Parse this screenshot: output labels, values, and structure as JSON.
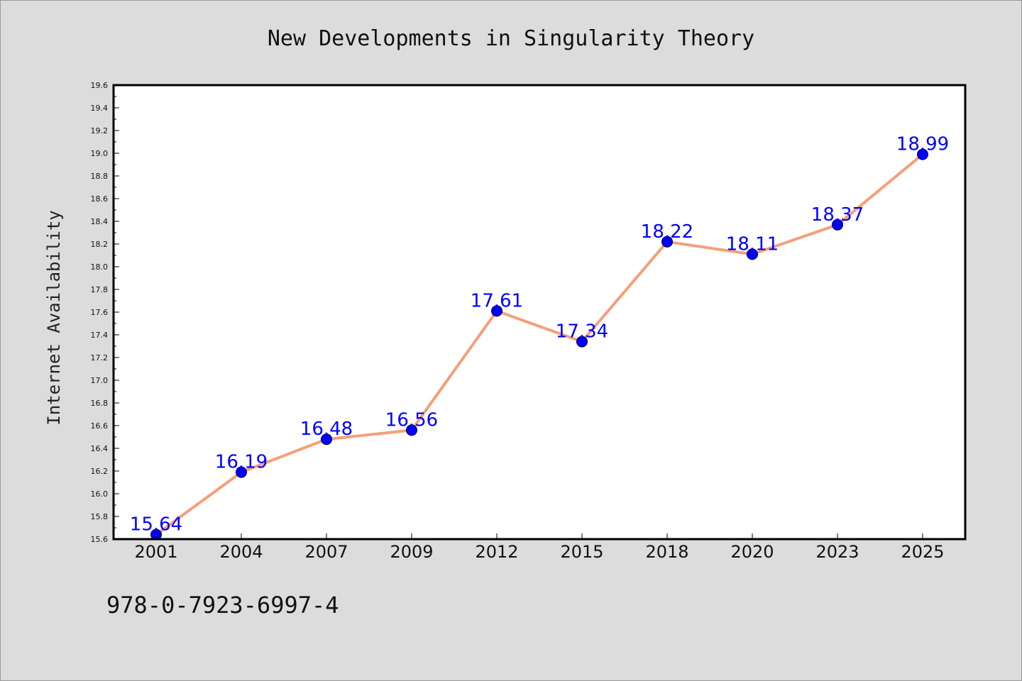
{
  "chart_data": {
    "type": "line",
    "title": "New Developments in Singularity Theory",
    "xlabel": "",
    "ylabel": "Internet Availability",
    "categories": [
      "2001",
      "2004",
      "2007",
      "2009",
      "2012",
      "2015",
      "2018",
      "2020",
      "2023",
      "2025"
    ],
    "series": [
      {
        "values": [
          15.64,
          16.19,
          16.48,
          16.56,
          17.61,
          17.34,
          18.22,
          18.11,
          18.37,
          18.99
        ],
        "labels": [
          "15.64",
          "16.19",
          "16.48",
          "16.56",
          "17.61",
          "17.34",
          "18.22",
          "18.11",
          "18.37",
          "18.99"
        ],
        "line_color": "#f4a07a",
        "marker_color": "#0000ff"
      }
    ],
    "ylim": [
      15.6,
      19.6
    ],
    "yticks": [
      "15.6",
      "15.8",
      "16.0",
      "16.2",
      "16.4",
      "16.6",
      "16.8",
      "17.0",
      "17.2",
      "17.4",
      "17.6",
      "17.8",
      "18.0",
      "18.2",
      "18.4",
      "18.6",
      "18.8",
      "19.0",
      "19.2",
      "19.4",
      "19.6"
    ],
    "grid": false,
    "legend": "none",
    "background_color": "#dcdcdc",
    "plot_background_color": "#ffffff",
    "footer": "978-0-7923-6997-4"
  }
}
